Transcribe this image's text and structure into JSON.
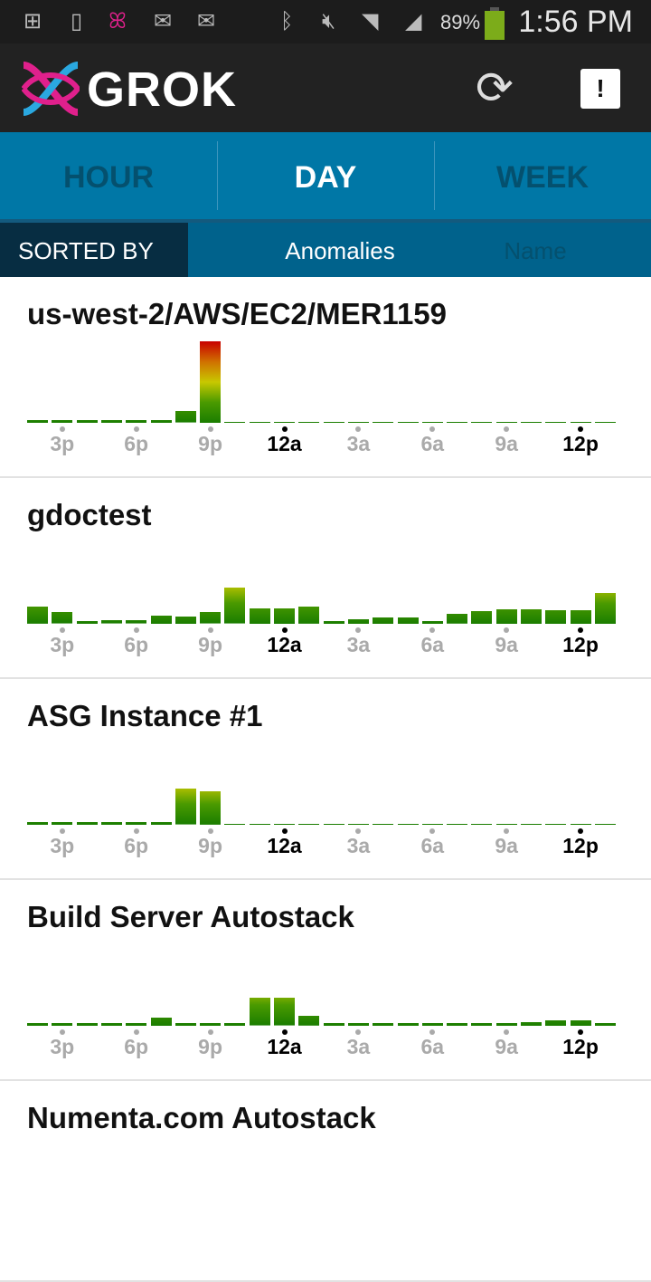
{
  "status_bar": {
    "icons": [
      "add-notification-icon",
      "sim-icon",
      "grok-notification-icon",
      "email-icon",
      "email-icon",
      "bluetooth-icon",
      "mute-icon",
      "wifi-icon",
      "signal-icon",
      "battery-icon"
    ],
    "battery": "89%",
    "battery_level": 0.89,
    "time": "1:56 PM"
  },
  "header": {
    "brand": "GROK",
    "refresh_icon": "refresh-icon",
    "alert_label": "!"
  },
  "tabs": [
    {
      "label": "HOUR",
      "active": false
    },
    {
      "label": "DAY",
      "active": true
    },
    {
      "label": "WEEK",
      "active": false
    }
  ],
  "sort": {
    "label": "SORTED BY",
    "options": [
      {
        "label": "Anomalies",
        "active": true
      },
      {
        "label": "Name",
        "active": false
      }
    ]
  },
  "colors": {
    "tab_bg": "#0077a6",
    "sort_bg": "#00628c",
    "bar_low": "#1a7d00",
    "bar_mid": "#c8c800",
    "bar_high": "#c80000"
  },
  "chart_data": [
    {
      "type": "bar",
      "title": "us-west-2/AWS/EC2/MER1159",
      "ylim": [
        0,
        1
      ],
      "tick_labels": [
        "3p",
        "6p",
        "9p",
        "12a",
        "3a",
        "6a",
        "9a",
        "12p"
      ],
      "major_ticks": [
        "12a",
        "12p"
      ],
      "values": [
        0.03,
        0.03,
        0.03,
        0.03,
        0.03,
        0.03,
        0.14,
        1.0,
        0,
        0,
        0,
        0,
        0,
        0,
        0,
        0,
        0,
        0,
        0,
        0,
        0,
        0,
        0,
        0
      ]
    },
    {
      "type": "bar",
      "title": "gdoctest",
      "ylim": [
        0,
        1
      ],
      "tick_labels": [
        "3p",
        "6p",
        "9p",
        "12a",
        "3a",
        "6a",
        "9a",
        "12p"
      ],
      "major_ticks": [
        "12a",
        "12p"
      ],
      "values": [
        0.21,
        0.14,
        0.03,
        0.04,
        0.04,
        0.1,
        0.09,
        0.14,
        0.44,
        0.19,
        0.19,
        0.21,
        0.03,
        0.06,
        0.08,
        0.08,
        0.03,
        0.12,
        0.16,
        0.18,
        0.18,
        0.17,
        0.17,
        0.38
      ]
    },
    {
      "type": "bar",
      "title": "ASG Instance #1",
      "ylim": [
        0,
        1
      ],
      "tick_labels": [
        "3p",
        "6p",
        "9p",
        "12a",
        "3a",
        "6a",
        "9a",
        "12p"
      ],
      "major_ticks": [
        "12a",
        "12p"
      ],
      "values": [
        0.03,
        0.03,
        0.03,
        0.03,
        0.03,
        0.03,
        0.44,
        0.41,
        0,
        0,
        0,
        0,
        0,
        0,
        0,
        0,
        0,
        0,
        0,
        0,
        0,
        0,
        0,
        0
      ]
    },
    {
      "type": "bar",
      "title": "Build Server Autostack",
      "ylim": [
        0,
        1
      ],
      "tick_labels": [
        "3p",
        "6p",
        "9p",
        "12a",
        "3a",
        "6a",
        "9a",
        "12p"
      ],
      "major_ticks": [
        "12a",
        "12p"
      ],
      "values": [
        0.02,
        0.02,
        0.02,
        0.02,
        0.02,
        0.1,
        0.02,
        0.02,
        0.02,
        0.34,
        0.34,
        0.12,
        0.02,
        0.02,
        0.02,
        0.02,
        0.02,
        0.02,
        0.02,
        0.02,
        0.05,
        0.07,
        0.07,
        0.02
      ]
    },
    {
      "type": "bar",
      "title": "Numenta.com Autostack",
      "ylim": [
        0,
        1
      ],
      "tick_labels": [],
      "values": []
    }
  ]
}
